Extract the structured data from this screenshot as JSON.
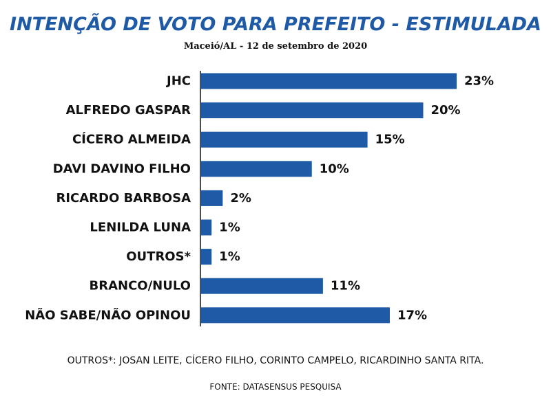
{
  "header": {
    "title": "INTENÇÃO DE VOTO PARA PREFEITO - ESTIMULADA",
    "subtitle": "Maceió/AL - 12 de setembro de 2020"
  },
  "footer": {
    "note": "OUTROS*: JOSAN LEITE, CÍCERO FILHO, CORINTO CAMPELO, RICARDINHO SANTA RITA.",
    "source": "FONTE: DATASENSUS PESQUISA"
  },
  "colors": {
    "title": "#1f5aa6",
    "bar": "#1f5aa6",
    "text": "#111111"
  },
  "chart_data": {
    "type": "bar",
    "orientation": "horizontal",
    "title": "INTENÇÃO DE VOTO PARA PREFEITO - ESTIMULADA",
    "subtitle": "Maceió/AL - 12 de setembro de 2020",
    "categories": [
      "JHC",
      "ALFREDO GASPAR",
      "CÍCERO ALMEIDA",
      "DAVI DAVINO FILHO",
      "RICARDO BARBOSA",
      "LENILDA LUNA",
      "OUTROS*",
      "BRANCO/NULO",
      "NÃO SABE/NÃO OPINOU"
    ],
    "values": [
      23,
      20,
      15,
      10,
      2,
      1,
      1,
      11,
      17
    ],
    "value_labels": [
      "23%",
      "20%",
      "15%",
      "10%",
      "2%",
      "1%",
      "1%",
      "11%",
      "17%"
    ],
    "unit": "%",
    "xlabel": "",
    "ylabel": "",
    "xlim": [
      0,
      23
    ],
    "grid": false,
    "legend": "none"
  }
}
